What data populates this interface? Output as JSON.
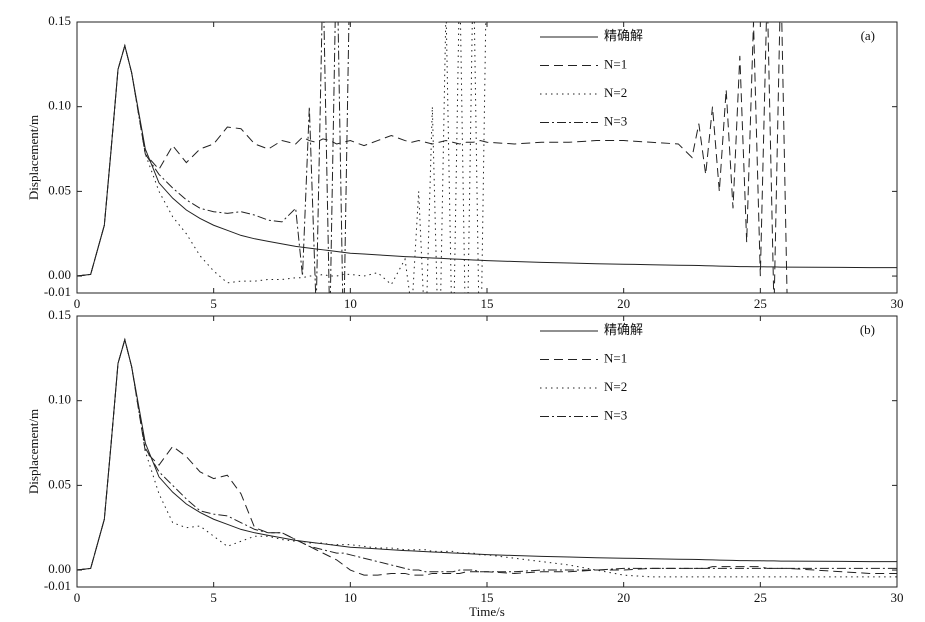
{
  "chart_data": [
    {
      "type": "line",
      "annotation": "(a)",
      "ylabel": "Displacement/m",
      "xlim": [
        0,
        30
      ],
      "xticks": [
        0,
        5,
        10,
        15,
        20,
        25,
        30
      ],
      "ylim": [
        -0.01,
        0.15
      ],
      "yticks": [
        -0.01,
        {
          "value": 0,
          "label": "0.00"
        },
        0.05,
        {
          "value": 0.1,
          "label": "0.10"
        },
        0.15
      ],
      "legend": "upper center",
      "x": [
        0,
        0.5,
        1,
        1.25,
        1.5,
        1.75,
        2,
        2.5,
        3,
        3.5,
        4,
        4.5,
        5,
        5.5,
        6,
        6.5,
        7,
        7.5,
        8,
        8.25,
        8.5,
        8.75,
        9,
        9.25,
        9.5,
        9.75,
        10,
        10.5,
        11,
        11.5,
        12,
        12.25,
        12.5,
        12.75,
        13,
        13.25,
        13.5,
        13.75,
        14,
        14.25,
        14.5,
        14.75,
        15,
        16,
        17,
        18,
        19,
        20,
        21,
        22,
        22.5,
        22.75,
        23,
        23.25,
        23.5,
        23.75,
        24,
        24.25,
        24.5,
        24.75,
        25,
        25.25,
        25.5,
        25.75,
        26,
        27,
        28,
        29,
        30
      ],
      "series": [
        {
          "name": "精确解",
          "color": "#222222",
          "style": "solid",
          "values": [
            0,
            0.001,
            0.03,
            0.075,
            0.122,
            0.136,
            0.12,
            0.075,
            0.055,
            0.046,
            0.039,
            0.034,
            0.03,
            0.027,
            0.024,
            0.022,
            0.0205,
            0.019,
            0.0175,
            0.017,
            0.0165,
            0.016,
            0.0155,
            0.015,
            0.0145,
            0.014,
            0.0135,
            0.013,
            0.0125,
            0.012,
            0.0115,
            0.0113,
            0.0111,
            0.0109,
            0.0107,
            0.0105,
            0.0103,
            0.0101,
            0.0099,
            0.0097,
            0.0095,
            0.0093,
            0.0091,
            0.0086,
            0.0081,
            0.0077,
            0.0073,
            0.007,
            0.0067,
            0.0064,
            0.0063,
            0.0062,
            0.0061,
            0.006,
            0.0059,
            0.0058,
            0.0057,
            0.0056,
            0.0056,
            0.0055,
            0.0055,
            0.0054,
            0.0054,
            0.0053,
            0.0053,
            0.0052,
            0.0051,
            0.005,
            0.005
          ]
        },
        {
          "name": "N=1",
          "color": "#222222",
          "style": "dashed",
          "values": [
            0,
            0.001,
            0.03,
            0.075,
            0.122,
            0.136,
            0.12,
            0.072,
            0.063,
            0.077,
            0.067,
            0.075,
            0.078,
            0.088,
            0.087,
            0.078,
            0.075,
            0.08,
            0.078,
            0.082,
            0.08,
            0.079,
            0.081,
            0.08,
            0.078,
            0.079,
            0.08,
            0.077,
            0.08,
            0.083,
            0.08,
            0.079,
            0.08,
            0.079,
            0.078,
            0.079,
            0.08,
            0.079,
            0.078,
            0.079,
            0.079,
            0.08,
            0.079,
            0.078,
            0.079,
            0.079,
            0.08,
            0.08,
            0.079,
            0.078,
            0.07,
            0.09,
            0.06,
            0.1,
            0.05,
            0.11,
            0.04,
            0.13,
            0.02,
            0.15,
            0,
            0.17,
            -0.02,
            0.18,
            -0.03,
            null,
            null,
            null,
            null
          ]
        },
        {
          "name": "N=2",
          "color": "#222222",
          "style": "dotted",
          "values": [
            0,
            0.001,
            0.03,
            0.075,
            0.122,
            0.136,
            0.12,
            0.072,
            0.05,
            0.035,
            0.025,
            0.012,
            0.003,
            -0.004,
            -0.003,
            -0.003,
            -0.002,
            -0.002,
            -0.001,
            -0.001,
            0,
            0,
            0.001,
            0,
            0,
            0.001,
            0.001,
            0,
            0.002,
            -0.005,
            0.01,
            -0.02,
            0.05,
            -0.04,
            0.1,
            -0.06,
            0.16,
            -0.06,
            0.18,
            -0.07,
            0.19,
            -0.07,
            0.2,
            null,
            null,
            null,
            null,
            null,
            null,
            null,
            null,
            null,
            null,
            null,
            null,
            null,
            null,
            null,
            null,
            null,
            null,
            null,
            null,
            null,
            null,
            null,
            null,
            null,
            null
          ]
        },
        {
          "name": "N=3",
          "color": "#222222",
          "style": "dashdot",
          "values": [
            0,
            0.001,
            0.03,
            0.075,
            0.122,
            0.136,
            0.12,
            0.072,
            0.06,
            0.052,
            0.045,
            0.04,
            0.038,
            0.037,
            0.038,
            0.036,
            0.033,
            0.032,
            0.04,
            0,
            0.1,
            -0.02,
            0.18,
            -0.03,
            0.2,
            -0.04,
            0.2,
            null,
            null,
            null,
            null,
            null,
            null,
            null,
            null,
            null,
            null,
            null,
            null,
            null,
            null,
            null,
            null,
            null,
            null,
            null,
            null,
            null,
            null,
            null,
            null,
            null,
            null,
            null,
            null,
            null,
            null,
            null,
            null,
            null,
            null,
            null,
            null,
            null,
            null,
            null,
            null,
            null,
            null
          ]
        }
      ]
    },
    {
      "type": "line",
      "annotation": "(b)",
      "ylabel": "Displacement/m",
      "xlabel": "Time/s",
      "xlim": [
        0,
        30
      ],
      "xticks": [
        0,
        5,
        10,
        15,
        20,
        25,
        30
      ],
      "ylim": [
        -0.01,
        0.15
      ],
      "yticks": [
        -0.01,
        {
          "value": 0,
          "label": "0.00"
        },
        0.05,
        {
          "value": 0.1,
          "label": "0.10"
        },
        0.15
      ],
      "legend": "upper center",
      "x": [
        0,
        0.5,
        1,
        1.25,
        1.5,
        1.75,
        2,
        2.5,
        3,
        3.5,
        4,
        4.5,
        5,
        5.5,
        6,
        6.5,
        7,
        7.5,
        8,
        8.25,
        8.5,
        8.75,
        9,
        9.25,
        9.5,
        9.75,
        10,
        10.5,
        11,
        11.5,
        12,
        12.25,
        12.5,
        12.75,
        13,
        13.25,
        13.5,
        13.75,
        14,
        14.25,
        14.5,
        14.75,
        15,
        16,
        17,
        18,
        19,
        20,
        21,
        22,
        22.5,
        22.75,
        23,
        23.25,
        23.5,
        23.75,
        24,
        24.25,
        24.5,
        24.75,
        25,
        25.25,
        25.5,
        25.75,
        26,
        27,
        28,
        29,
        30
      ],
      "series": [
        {
          "name": "精确解",
          "color": "#222222",
          "style": "solid",
          "values": [
            0,
            0.001,
            0.03,
            0.075,
            0.122,
            0.136,
            0.12,
            0.075,
            0.055,
            0.046,
            0.039,
            0.034,
            0.03,
            0.027,
            0.024,
            0.022,
            0.0205,
            0.019,
            0.0175,
            0.017,
            0.0165,
            0.016,
            0.0155,
            0.015,
            0.0145,
            0.014,
            0.0135,
            0.013,
            0.0125,
            0.012,
            0.0115,
            0.0113,
            0.0111,
            0.0109,
            0.0107,
            0.0105,
            0.0103,
            0.0101,
            0.0099,
            0.0097,
            0.0095,
            0.0093,
            0.0091,
            0.0086,
            0.0081,
            0.0077,
            0.0073,
            0.007,
            0.0067,
            0.0064,
            0.0063,
            0.0062,
            0.0061,
            0.006,
            0.0059,
            0.0058,
            0.0057,
            0.0056,
            0.0056,
            0.0055,
            0.0055,
            0.0054,
            0.0054,
            0.0053,
            0.0053,
            0.0052,
            0.0051,
            0.005,
            0.005
          ]
        },
        {
          "name": "N=1",
          "color": "#222222",
          "style": "dashed",
          "values": [
            0,
            0.001,
            0.03,
            0.075,
            0.122,
            0.136,
            0.12,
            0.07,
            0.062,
            0.073,
            0.067,
            0.058,
            0.054,
            0.056,
            0.045,
            0.025,
            0.022,
            0.022,
            0.018,
            0.016,
            0.014,
            0.012,
            0.01,
            0.008,
            0.006,
            0.003,
            0,
            -0.003,
            -0.003,
            -0.002,
            -0.002,
            -0.003,
            -0.003,
            -0.003,
            -0.002,
            -0.002,
            -0.002,
            -0.002,
            -0.002,
            -0.001,
            -0.001,
            -0.001,
            -0.001,
            -0.002,
            -0.001,
            -0.001,
            0,
            0,
            0.001,
            0.001,
            0.001,
            0.001,
            0.001,
            0.002,
            0.002,
            0.002,
            0.002,
            0.002,
            0.002,
            0.002,
            0.002,
            0.001,
            0.001,
            0.001,
            0.001,
            0,
            -0.001,
            -0.002,
            -0.002
          ]
        },
        {
          "name": "N=2",
          "color": "#222222",
          "style": "dotted",
          "values": [
            0,
            0.001,
            0.03,
            0.075,
            0.122,
            0.136,
            0.12,
            0.07,
            0.045,
            0.028,
            0.025,
            0.026,
            0.02,
            0.014,
            0.017,
            0.02,
            0.02,
            0.018,
            0.017,
            0.017,
            0.016,
            0.016,
            0.016,
            0.015,
            0.015,
            0.015,
            0.015,
            0.014,
            0.013,
            0.013,
            0.012,
            0.012,
            0.012,
            0.012,
            0.011,
            0.011,
            0.011,
            0.011,
            0.01,
            0.01,
            0.01,
            0.009,
            0.009,
            0.007,
            0.005,
            0.003,
            0,
            -0.003,
            -0.004,
            -0.004,
            -0.004,
            -0.004,
            -0.004,
            -0.004,
            -0.004,
            -0.004,
            -0.004,
            -0.004,
            -0.004,
            -0.004,
            -0.004,
            -0.004,
            -0.004,
            -0.004,
            -0.004,
            -0.004,
            -0.004,
            -0.004,
            -0.004
          ]
        },
        {
          "name": "N=3",
          "color": "#222222",
          "style": "dashdot",
          "values": [
            0,
            0.001,
            0.03,
            0.075,
            0.122,
            0.136,
            0.12,
            0.072,
            0.058,
            0.05,
            0.042,
            0.035,
            0.033,
            0.032,
            0.028,
            0.024,
            0.022,
            0.022,
            0.018,
            0.016,
            0.014,
            0.013,
            0.012,
            0.011,
            0.01,
            0.01,
            0.009,
            0.007,
            0.005,
            0.003,
            0.001,
            0,
            0,
            -0.001,
            -0.001,
            -0.001,
            -0.001,
            -0.001,
            0,
            0,
            0,
            -0.001,
            -0.001,
            -0.001,
            0,
            0,
            0,
            0.001,
            0.001,
            0.001,
            0.001,
            0.001,
            0.001,
            0.001,
            0.001,
            0.001,
            0.001,
            0.001,
            0.001,
            0.001,
            0.001,
            0.001,
            0.001,
            0.001,
            0.001,
            0.001,
            0.001,
            0.001,
            0.001
          ]
        }
      ]
    }
  ]
}
